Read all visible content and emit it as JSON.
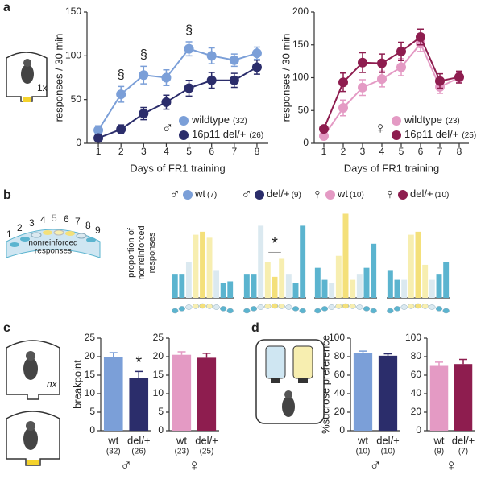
{
  "panels": [
    "a",
    "b",
    "c",
    "d"
  ],
  "diagrams": {
    "a_ratio": "1x",
    "c_ratio": "nx",
    "ports": [
      "1",
      "2",
      "3",
      "4",
      "5",
      "6",
      "7",
      "8",
      "9"
    ],
    "caption": [
      "nonreinforced",
      "responses"
    ]
  },
  "chart_data": [
    {
      "type": "line",
      "sex": "♂",
      "ylabel": "responses / 30 min",
      "xlabel": "Days of FR1 training",
      "x": [
        1,
        2,
        3,
        4,
        5,
        6,
        7,
        8
      ],
      "xlim": [
        0.5,
        8.5
      ],
      "xticks": [
        1,
        2,
        3,
        4,
        5,
        6,
        7,
        8
      ],
      "ylim": [
        0,
        150
      ],
      "yticks": [
        0,
        50,
        100,
        150
      ],
      "series": [
        {
          "name": "wildtype",
          "n_label": "(32)",
          "color": "#7b9fd8",
          "values": [
            15,
            56,
            78,
            75,
            108,
            100,
            95,
            103
          ],
          "errors": [
            5,
            9,
            10,
            9,
            8,
            9,
            7,
            7
          ]
        },
        {
          "name": "16p11 del/+",
          "n_label": "(26)",
          "color": "#2b2d6b",
          "values": [
            6,
            16,
            34,
            47,
            63,
            72,
            72,
            87
          ],
          "errors": [
            4,
            5,
            7,
            8,
            9,
            9,
            8,
            8
          ]
        }
      ],
      "annotations": [
        {
          "x": 2,
          "text": "§"
        },
        {
          "x": 3,
          "text": "§"
        },
        {
          "x": 5,
          "text": "§"
        }
      ]
    },
    {
      "type": "line",
      "sex": "♀",
      "ylabel": "responses / 30 min",
      "xlabel": "Days of FR1 training",
      "x": [
        1,
        2,
        3,
        4,
        5,
        6,
        7,
        8
      ],
      "xlim": [
        0.5,
        8.5
      ],
      "xticks": [
        1,
        2,
        3,
        4,
        5,
        6,
        7,
        8
      ],
      "ylim": [
        0,
        200
      ],
      "yticks": [
        0,
        50,
        100,
        150,
        200
      ],
      "series": [
        {
          "name": "wildtype",
          "n_label": "(23)",
          "color": "#e49ac4",
          "values": [
            11,
            54,
            85,
            98,
            116,
            152,
            86,
            100
          ],
          "errors": [
            5,
            12,
            12,
            12,
            13,
            12,
            10,
            8
          ]
        },
        {
          "name": "16p11 del/+",
          "n_label": "(25)",
          "color": "#8e1d4f",
          "values": [
            22,
            93,
            123,
            122,
            140,
            162,
            95,
            101
          ],
          "errors": [
            5,
            14,
            15,
            14,
            14,
            12,
            11,
            9
          ]
        }
      ]
    },
    {
      "type": "bar",
      "ylabel": [
        "proportion of",
        "nonreinforced",
        "responses"
      ],
      "ylim": [
        0,
        0.3
      ],
      "legend": {
        "symbol": "♂",
        "name": "wt",
        "n_label": "(7)",
        "color": "#7b9fd8"
      },
      "values": [
        0.08,
        0.08,
        0.12,
        0.21,
        0.22,
        0.2,
        0.09,
        0.05,
        0.055
      ],
      "colors": [
        "#5bb4cf",
        "#5bb4cf",
        "#dbe9f0",
        "#f7eeb0",
        "#f4e07a",
        "#f7eeb0",
        "#dbe9f0",
        "#5bb4cf",
        "#5bb4cf"
      ]
    },
    {
      "type": "bar",
      "ylim": [
        0,
        0.3
      ],
      "annotation": "*",
      "legend": {
        "symbol": "♂",
        "name": "del/+",
        "n_label": "(9)",
        "color": "#2b2d6b"
      },
      "values": [
        0.08,
        0.08,
        0.24,
        0.12,
        0.07,
        0.13,
        0.08,
        0.05,
        0.24
      ],
      "colors": [
        "#5bb4cf",
        "#5bb4cf",
        "#dbe9f0",
        "#f7eeb0",
        "#f4e07a",
        "#f7eeb0",
        "#dbe9f0",
        "#5bb4cf",
        "#5bb4cf"
      ]
    },
    {
      "type": "bar",
      "ylim": [
        0,
        0.3
      ],
      "legend": {
        "symbol": "♀",
        "name": "wt",
        "n_label": "(10)",
        "color": "#e49ac4"
      },
      "values": [
        0.1,
        0.06,
        0.05,
        0.14,
        0.28,
        0.06,
        0.08,
        0.1,
        0.18
      ],
      "colors": [
        "#5bb4cf",
        "#5bb4cf",
        "#dbe9f0",
        "#f7eeb0",
        "#f4e07a",
        "#f7eeb0",
        "#dbe9f0",
        "#5bb4cf",
        "#5bb4cf"
      ]
    },
    {
      "type": "bar",
      "ylim": [
        0,
        0.3
      ],
      "legend": {
        "symbol": "♀",
        "name": "del/+",
        "n_label": "(10)",
        "color": "#8e1d4f"
      },
      "values": [
        0.09,
        0.06,
        0.06,
        0.21,
        0.22,
        0.11,
        0.06,
        0.08,
        0.12
      ],
      "colors": [
        "#5bb4cf",
        "#5bb4cf",
        "#dbe9f0",
        "#f7eeb0",
        "#f4e07a",
        "#f7eeb0",
        "#dbe9f0",
        "#5bb4cf",
        "#5bb4cf"
      ]
    },
    {
      "type": "bar",
      "ylabel": "breakpoint",
      "ylim": [
        0,
        25
      ],
      "yticks": [
        0,
        5,
        10,
        15,
        20,
        25
      ],
      "sex": "♂",
      "categories": [
        "wt",
        "del/+"
      ],
      "n_labels": [
        "(32)",
        "(26)"
      ],
      "values": [
        20,
        14.3
      ],
      "errors": [
        1.1,
        1.7
      ],
      "colors": [
        "#7b9fd8",
        "#2b2d6b"
      ],
      "annotations": [
        {
          "category": "del/+",
          "text": "*"
        }
      ]
    },
    {
      "type": "bar",
      "ylim": [
        0,
        25
      ],
      "yticks": [
        0,
        5,
        10,
        15,
        20,
        25
      ],
      "sex": "♀",
      "categories": [
        "wt",
        "del/+"
      ],
      "n_labels": [
        "(23)",
        "(25)"
      ],
      "values": [
        20.5,
        19.7
      ],
      "errors": [
        0.8,
        1.2
      ],
      "colors": [
        "#e49ac4",
        "#8e1d4f"
      ]
    },
    {
      "type": "bar",
      "ylabel": "%sucrose preference",
      "ylim": [
        0,
        100
      ],
      "yticks": [
        0,
        20,
        40,
        60,
        80,
        100
      ],
      "sex": "♂",
      "categories": [
        "wt",
        "del/+"
      ],
      "n_labels": [
        "(10)",
        "(10)"
      ],
      "values": [
        84,
        81
      ],
      "errors": [
        2,
        2
      ],
      "colors": [
        "#7b9fd8",
        "#2b2d6b"
      ]
    },
    {
      "type": "bar",
      "ylim": [
        0,
        100
      ],
      "yticks": [
        0,
        20,
        40,
        60,
        80,
        100
      ],
      "sex": "♀",
      "categories": [
        "wt",
        "del/+"
      ],
      "n_labels": [
        "(9)",
        "(7)"
      ],
      "values": [
        70,
        72
      ],
      "errors": [
        4,
        5
      ],
      "colors": [
        "#e49ac4",
        "#8e1d4f"
      ]
    }
  ]
}
